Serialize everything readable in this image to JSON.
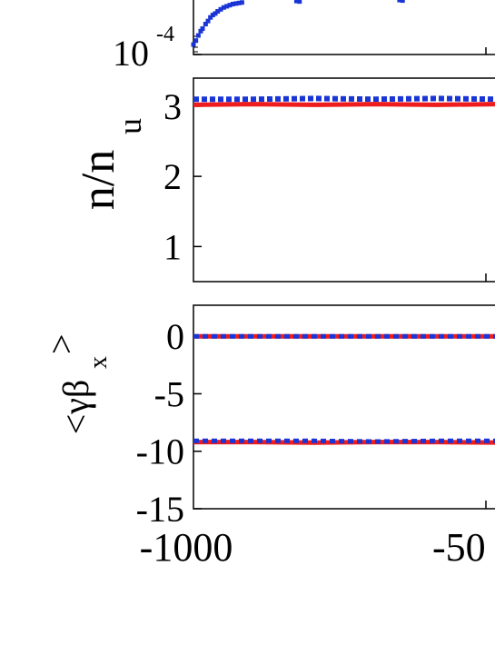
{
  "colors": {
    "red_series": "#ee1c1c",
    "blue_series": "#1a35d6",
    "axes": "#000000"
  },
  "chart_data": [
    {
      "type": "scatter",
      "panel": "top",
      "ylabel": "",
      "yscale": "log",
      "y_tick_labels": [
        {
          "base": "10",
          "exp": "-4"
        }
      ],
      "xlim": [
        -1000,
        -480
      ],
      "series": [
        {
          "color": "blue",
          "style": "dotted",
          "points": [
            [
              -1000,
              0.00014
            ],
            [
              -996,
              0.00016
            ],
            [
              -992,
              0.00019
            ],
            [
              -988,
              0.00022
            ],
            [
              -985,
              0.00024
            ],
            [
              -980,
              0.00028
            ],
            [
              -976,
              0.00031
            ],
            [
              -972,
              0.00035
            ],
            [
              -968,
              0.00038
            ],
            [
              -964,
              0.0004
            ],
            [
              -960,
              0.00043
            ],
            [
              -955,
              0.00046
            ],
            [
              -950,
              0.00049
            ],
            [
              -945,
              0.00051
            ],
            [
              -940,
              0.00053
            ],
            [
              -935,
              0.00055
            ],
            [
              -930,
              0.00056
            ],
            [
              -925,
              0.00057
            ],
            [
              -920,
              0.00058
            ],
            [
              -830,
              0.00061
            ],
            [
              -825,
              0.0006
            ],
            [
              -660,
              0.00063
            ],
            [
              -655,
              0.00062
            ]
          ]
        }
      ]
    },
    {
      "type": "line",
      "panel": "middle",
      "ylabel": {
        "main": "n/n",
        "sub": "u"
      },
      "xlim": [
        -1000,
        -480
      ],
      "ylim": [
        0.5,
        3.4
      ],
      "y_ticks": [
        1,
        2,
        3
      ],
      "y_tick_labels": [
        "1",
        "2",
        "3"
      ],
      "series": [
        {
          "color": "blue",
          "style": "dotted",
          "x": [
            -1000,
            -900,
            -800,
            -700,
            -600,
            -500,
            -480
          ],
          "y": [
            3.1,
            3.1,
            3.11,
            3.1,
            3.11,
            3.1,
            3.1
          ]
        },
        {
          "color": "red",
          "style": "solid",
          "x": [
            -1000,
            -900,
            -800,
            -700,
            -600,
            -500,
            -480
          ],
          "y": [
            3.02,
            3.03,
            3.02,
            3.03,
            3.02,
            3.03,
            3.02
          ]
        }
      ]
    },
    {
      "type": "line",
      "panel": "bottom",
      "ylabel": {
        "main": "<γβ",
        "sub": "x",
        "close": ">"
      },
      "xlim": [
        -1000,
        -480
      ],
      "ylim": [
        -15,
        2.7
      ],
      "y_ticks": [
        0,
        -5,
        -10,
        -15
      ],
      "y_tick_labels": [
        "0",
        "-5",
        "-10",
        "-15"
      ],
      "x_tick_labels": [
        "-1000",
        "-50"
      ],
      "series": [
        {
          "color": "red",
          "style": "solid",
          "x": [
            -1000,
            -900,
            -800,
            -700,
            -600,
            -500,
            -480
          ],
          "y": [
            0,
            0,
            0,
            0,
            0,
            0,
            0
          ]
        },
        {
          "color": "blue",
          "style": "dotted",
          "x": [
            -1000,
            -900,
            -800,
            -700,
            -600,
            -500,
            -480
          ],
          "y": [
            0,
            0,
            0,
            0,
            0,
            0,
            0
          ]
        },
        {
          "color": "red",
          "style": "solid",
          "x": [
            -1000,
            -900,
            -800,
            -700,
            -600,
            -500,
            -480
          ],
          "y": [
            -9.2,
            -9.2,
            -9.25,
            -9.2,
            -9.2,
            -9.25,
            -9.2
          ]
        },
        {
          "color": "blue",
          "style": "dotted",
          "x": [
            -1000,
            -900,
            -800,
            -700,
            -600,
            -500,
            -480
          ],
          "y": [
            -9.1,
            -9.1,
            -9.1,
            -9.15,
            -9.1,
            -9.1,
            -9.1
          ]
        }
      ]
    }
  ]
}
